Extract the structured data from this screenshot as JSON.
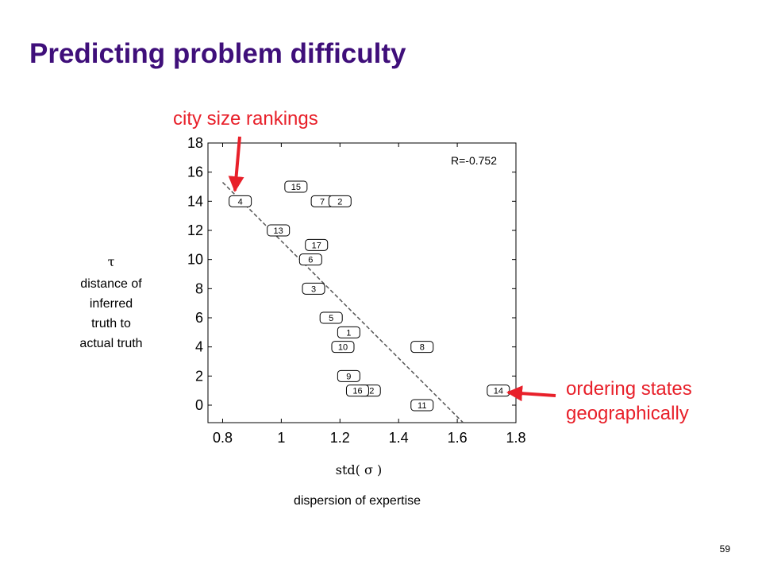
{
  "slide": {
    "title": "Predicting problem difficulty",
    "callout_top": "city size rankings",
    "callout_right_line1": "ordering states",
    "callout_right_line2": "geographically",
    "y_axis_symbol": "τ",
    "y_axis_description": [
      "distance of",
      "inferred",
      "truth to",
      "actual truth"
    ],
    "x_axis_symbol": "std(  σ  )",
    "x_axis_description": "dispersion of expertise",
    "slide_number": "59",
    "accent_color": "#e8202a",
    "title_color": "#3f0f7a"
  },
  "chart_data": {
    "type": "scatter",
    "title": "",
    "xlabel": "std( σ )",
    "ylabel": "τ",
    "xlim": [
      0.75,
      1.8
    ],
    "ylim": [
      -1.2,
      18
    ],
    "x_ticks": [
      0.8,
      1,
      1.2,
      1.4,
      1.6,
      1.8
    ],
    "x_tick_labels": [
      "0.8",
      "1",
      "1.2",
      "1.4",
      "1.6",
      "1.8"
    ],
    "y_ticks": [
      0,
      2,
      4,
      6,
      8,
      10,
      12,
      14,
      16,
      18
    ],
    "y_tick_labels": [
      "0",
      "2",
      "4",
      "6",
      "8",
      "10",
      "12",
      "14",
      "16",
      "18"
    ],
    "grid": false,
    "annotation": "R=-0.752",
    "annotation_position": "top-right",
    "points": [
      {
        "label": "4",
        "x": 0.86,
        "y": 14
      },
      {
        "label": "15",
        "x": 1.05,
        "y": 15
      },
      {
        "label": "7",
        "x": 1.14,
        "y": 14
      },
      {
        "label": "2",
        "x": 1.2,
        "y": 14
      },
      {
        "label": "13",
        "x": 0.99,
        "y": 12
      },
      {
        "label": "17",
        "x": 1.12,
        "y": 11
      },
      {
        "label": "6",
        "x": 1.1,
        "y": 10
      },
      {
        "label": "3",
        "x": 1.11,
        "y": 8
      },
      {
        "label": "5",
        "x": 1.17,
        "y": 6
      },
      {
        "label": "1",
        "x": 1.23,
        "y": 5
      },
      {
        "label": "10",
        "x": 1.21,
        "y": 4
      },
      {
        "label": "8",
        "x": 1.48,
        "y": 4
      },
      {
        "label": "9",
        "x": 1.23,
        "y": 2
      },
      {
        "label": "12",
        "x": 1.3,
        "y": 1
      },
      {
        "label": "16",
        "x": 1.26,
        "y": 1
      },
      {
        "label": "14",
        "x": 1.74,
        "y": 1
      },
      {
        "label": "11",
        "x": 1.48,
        "y": 0
      }
    ],
    "fit_line": {
      "x": [
        0.8,
        1.62
      ],
      "y": [
        15.3,
        -1.2
      ],
      "style": "dashed"
    }
  }
}
